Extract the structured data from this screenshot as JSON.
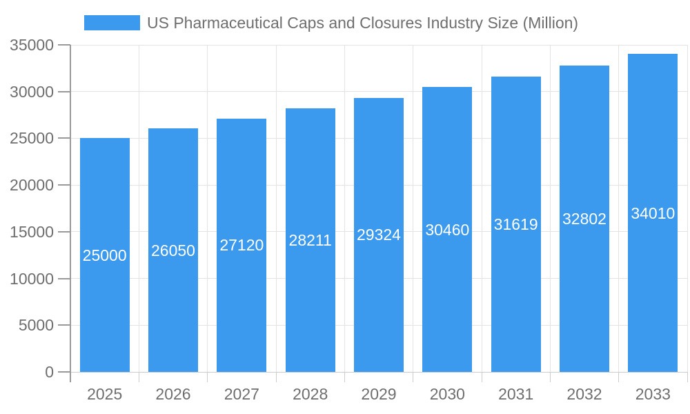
{
  "chart_data": {
    "type": "bar",
    "title": "US Pharmaceutical Caps and Closures Industry Size (Million)",
    "series_name": "US Pharmaceutical Caps and Closures Industry Size (Million)",
    "categories": [
      "2025",
      "2026",
      "2027",
      "2028",
      "2029",
      "2030",
      "2031",
      "2032",
      "2033"
    ],
    "values": [
      25000,
      26050,
      27120,
      28211,
      29324,
      30460,
      31619,
      32802,
      34010
    ],
    "value_labels": [
      "25000",
      "26050",
      "27120",
      "28211",
      "29324",
      "30460",
      "31619",
      "32802",
      "34010"
    ],
    "xlabel": "",
    "ylabel": "",
    "ylim": [
      0,
      35000
    ],
    "yticks": [
      0,
      5000,
      10000,
      15000,
      20000,
      25000,
      30000,
      35000
    ],
    "ytick_labels": [
      "0",
      "5000",
      "10000",
      "15000",
      "20000",
      "25000",
      "30000",
      "35000"
    ],
    "grid": true,
    "legend_position": "top-left",
    "colors": {
      "bar": "#3B99EE",
      "axis_text": "#6e6e6e",
      "gridline": "#e3e3e3",
      "axis_line": "#999999",
      "x_tick": "#cccccc",
      "value_text": "#ffffff",
      "legend_text": "#6e6e6e"
    }
  }
}
